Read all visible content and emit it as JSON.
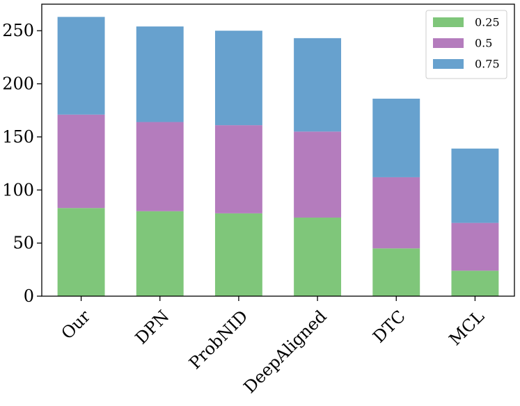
{
  "chart_data": {
    "type": "bar",
    "stacked": true,
    "categories": [
      "Our",
      "DPN",
      "ProbNID",
      "DeepAligned",
      "DTC",
      "MCL"
    ],
    "series": [
      {
        "name": "0.25",
        "color": "#7fc67a",
        "values": [
          83,
          80,
          78,
          74,
          45,
          24
        ]
      },
      {
        "name": "0.5",
        "color": "#b47cbd",
        "values": [
          88,
          84,
          83,
          81,
          67,
          45
        ]
      },
      {
        "name": "0.75",
        "color": "#67a1ce",
        "values": [
          92,
          90,
          89,
          88,
          74,
          70
        ]
      }
    ],
    "ylim": [
      0,
      275
    ],
    "yticks": [
      0,
      50,
      100,
      150,
      200,
      250
    ],
    "xlabel_rotation": -45,
    "legend_position": "top-right",
    "grid": false,
    "title": "",
    "xlabel": "",
    "ylabel": ""
  }
}
